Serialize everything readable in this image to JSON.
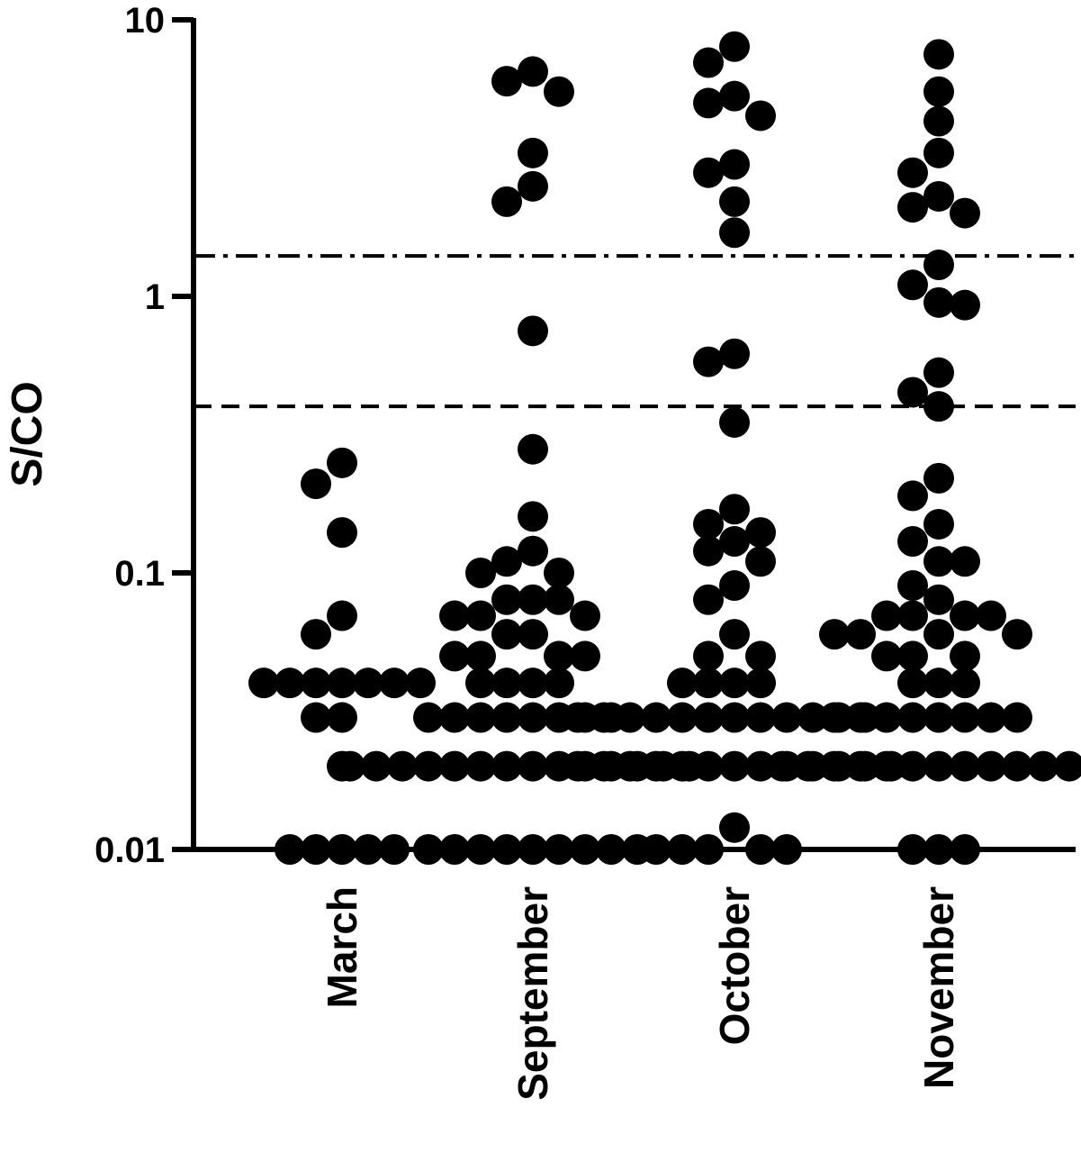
{
  "chart_data": {
    "type": "scatter",
    "ylabel": "S/CO",
    "yscale": "log",
    "ylim": [
      0.01,
      10
    ],
    "yticks": [
      {
        "value": 10,
        "label": "10"
      },
      {
        "value": 1,
        "label": "1"
      },
      {
        "value": 0.1,
        "label": "0.1"
      },
      {
        "value": 0.01,
        "label": "0.01"
      }
    ],
    "categories": [
      "March",
      "September",
      "October",
      "November"
    ],
    "reference_lines": [
      {
        "value": 1.4,
        "style": "dash-dot"
      },
      {
        "value": 0.4,
        "style": "dashed"
      }
    ],
    "marker_color": "#000000",
    "series": [
      {
        "values": [
          0.25,
          0.21,
          0.14,
          0.07,
          0.06,
          0.04,
          0.04,
          0.04,
          0.04,
          0.04,
          0.04,
          0.04,
          0.03,
          0.03,
          0.02,
          0.01,
          0.01,
          0.01,
          0.01,
          0.01
        ]
      },
      {
        "values": [
          6.5,
          6.0,
          5.5,
          3.3,
          2.5,
          2.2,
          0.75,
          0.28,
          0.16,
          0.12,
          0.11,
          0.1,
          0.1,
          0.08,
          0.08,
          0.08,
          0.07,
          0.07,
          0.07,
          0.06,
          0.06,
          0.05,
          0.05,
          0.05,
          0.05,
          0.04,
          0.04,
          0.04,
          0.04,
          0.03,
          0.03,
          0.03,
          0.03,
          0.03,
          0.03,
          0.03,
          0.03,
          0.02,
          0.02,
          0.02,
          0.02,
          0.02,
          0.02,
          0.02,
          0.02,
          0.02,
          0.02,
          0.02,
          0.02,
          0.02,
          0.02,
          0.01,
          0.01,
          0.01,
          0.01,
          0.01,
          0.01,
          0.01,
          0.01,
          0.01
        ]
      },
      {
        "values": [
          8.0,
          7.0,
          5.3,
          5.0,
          4.5,
          3.0,
          2.8,
          2.2,
          1.7,
          0.62,
          0.58,
          0.35,
          0.17,
          0.15,
          0.14,
          0.13,
          0.12,
          0.11,
          0.09,
          0.08,
          0.06,
          0.05,
          0.05,
          0.04,
          0.04,
          0.04,
          0.04,
          0.03,
          0.03,
          0.03,
          0.03,
          0.03,
          0.03,
          0.03,
          0.03,
          0.03,
          0.03,
          0.03,
          0.03,
          0.02,
          0.02,
          0.02,
          0.02,
          0.02,
          0.02,
          0.02,
          0.02,
          0.02,
          0.02,
          0.02,
          0.02,
          0.02,
          0.012,
          0.01,
          0.01,
          0.01,
          0.01,
          0.01
        ]
      },
      {
        "values": [
          7.5,
          5.5,
          4.3,
          3.3,
          2.8,
          2.3,
          2.1,
          2.0,
          1.3,
          1.1,
          0.95,
          0.93,
          0.53,
          0.45,
          0.4,
          0.22,
          0.19,
          0.15,
          0.13,
          0.11,
          0.11,
          0.09,
          0.08,
          0.07,
          0.07,
          0.07,
          0.07,
          0.06,
          0.06,
          0.06,
          0.06,
          0.05,
          0.05,
          0.05,
          0.04,
          0.04,
          0.04,
          0.03,
          0.03,
          0.03,
          0.03,
          0.03,
          0.03,
          0.03,
          0.03,
          0.02,
          0.02,
          0.02,
          0.02,
          0.02,
          0.02,
          0.02,
          0.02,
          0.02,
          0.02,
          0.02,
          0.02,
          0.02,
          0.01,
          0.01,
          0.01
        ]
      }
    ]
  }
}
